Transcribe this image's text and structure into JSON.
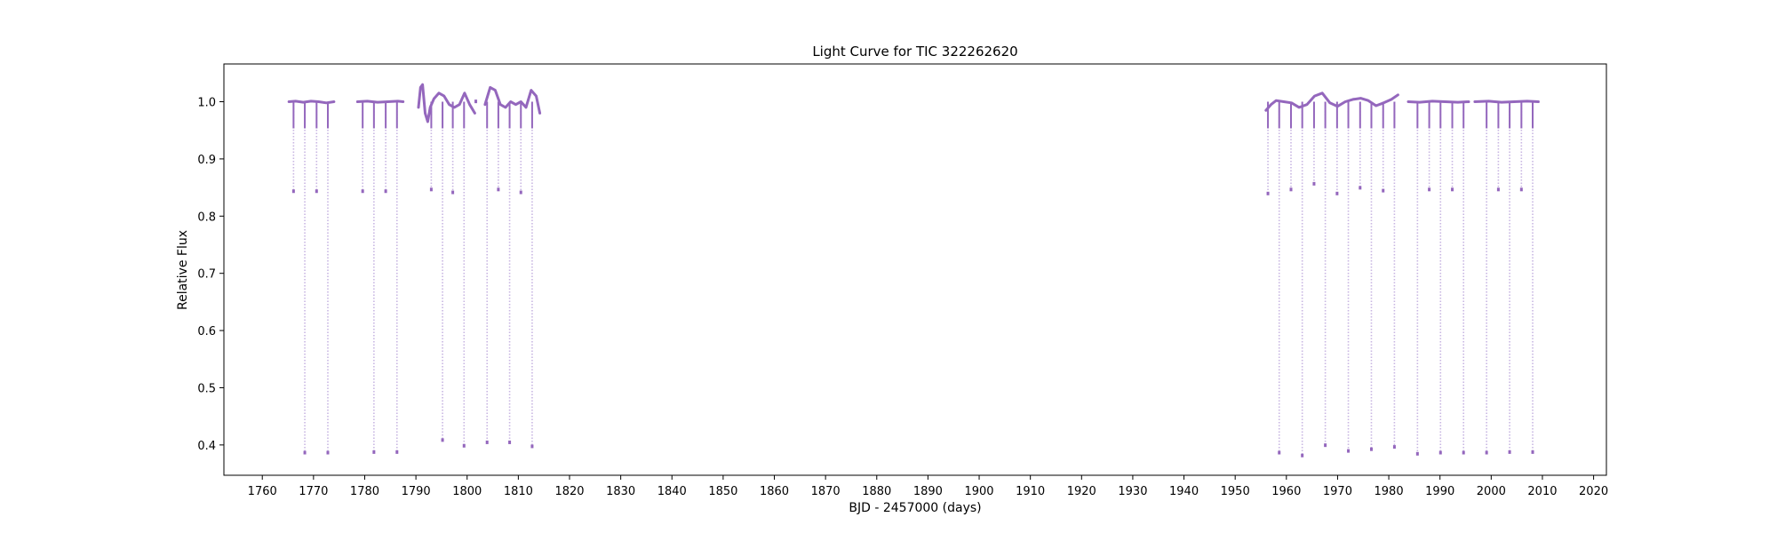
{
  "chart_data": {
    "type": "scatter",
    "title": "Light Curve for TIC 322262620",
    "xlabel": "BJD - 2457000 (days)",
    "ylabel": "Relative Flux",
    "xlim": [
      1752.5,
      2022.5
    ],
    "ylim": [
      0.347,
      1.066
    ],
    "x_ticks": [
      1760,
      1770,
      1780,
      1790,
      1800,
      1810,
      1820,
      1830,
      1840,
      1850,
      1860,
      1870,
      1880,
      1890,
      1900,
      1910,
      1920,
      1930,
      1940,
      1950,
      1960,
      1970,
      1980,
      1990,
      2000,
      2010,
      2020
    ],
    "y_ticks": [
      0.4,
      0.5,
      0.6,
      0.7,
      0.8,
      0.9,
      1.0
    ],
    "y_tick_labels": [
      "0.4",
      "0.5",
      "0.6",
      "0.7",
      "0.8",
      "0.9",
      "1.0"
    ],
    "grid": false,
    "legend": "none",
    "marker_color": "#9467bd",
    "ingress_color": "#c8b6e2",
    "baseline_segments": [
      {
        "x": [
          1765.2,
          1766.5,
          1768.0,
          1769.5,
          1771.0,
          1772.5,
          1774.0
        ],
        "y": [
          1.0,
          1.001,
          0.999,
          1.001,
          1.0,
          0.998,
          1.0
        ]
      },
      {
        "x": [
          1778.6,
          1780.5,
          1782.5,
          1784.5,
          1786.5,
          1787.5
        ],
        "y": [
          1.0,
          1.001,
          0.999,
          1.0,
          1.001,
          1.0
        ]
      },
      {
        "x": [
          1790.5,
          1790.9,
          1791.3,
          1791.8,
          1792.3,
          1792.8,
          1793.5,
          1794.5,
          1795.5,
          1796.5,
          1797.5,
          1798.5,
          1799.5,
          1800.5,
          1801.5
        ],
        "y": [
          0.99,
          1.025,
          1.03,
          0.98,
          0.965,
          0.99,
          1.005,
          1.015,
          1.01,
          0.995,
          0.99,
          0.995,
          1.015,
          0.995,
          0.98
        ]
      },
      {
        "x": [
          1803.5,
          1804.5,
          1805.5,
          1806.5,
          1807.5,
          1808.5,
          1809.5,
          1810.5,
          1811.5,
          1812.5,
          1813.5,
          1814.2
        ],
        "y": [
          0.995,
          1.025,
          1.02,
          0.995,
          0.99,
          1.0,
          0.995,
          1.0,
          0.99,
          1.02,
          1.01,
          0.98
        ]
      },
      {
        "x": [
          1956.0,
          1957.0,
          1958.0,
          1959.5,
          1961.0,
          1962.5,
          1964.0,
          1965.5,
          1967.0,
          1968.5,
          1970.0,
          1971.5,
          1973.0,
          1974.5,
          1976.0,
          1977.5,
          1979.0,
          1980.5,
          1981.8
        ],
        "y": [
          0.985,
          0.995,
          1.002,
          1.0,
          0.998,
          0.99,
          0.995,
          1.01,
          1.015,
          0.998,
          0.992,
          1.0,
          1.004,
          1.006,
          1.002,
          0.993,
          0.998,
          1.004,
          1.012
        ]
      },
      {
        "x": [
          1983.8,
          1986.0,
          1988.5,
          1991.0,
          1993.5,
          1995.6
        ],
        "y": [
          1.0,
          0.999,
          1.001,
          1.0,
          0.999,
          1.0
        ]
      },
      {
        "x": [
          1996.8,
          1999.5,
          2002.0,
          2004.5,
          2007.0,
          2009.2
        ],
        "y": [
          1.0,
          1.001,
          0.999,
          1.0,
          1.001,
          1.0
        ]
      }
    ],
    "primary_eclipses": [
      {
        "x": 1768.3,
        "y": 0.385
      },
      {
        "x": 1772.8,
        "y": 0.385
      },
      {
        "x": 1781.8,
        "y": 0.386
      },
      {
        "x": 1786.3,
        "y": 0.386
      },
      {
        "x": 1795.2,
        "y": 0.407
      },
      {
        "x": 1799.4,
        "y": 0.397
      },
      {
        "x": 1803.9,
        "y": 0.403
      },
      {
        "x": 1808.3,
        "y": 0.403
      },
      {
        "x": 1812.7,
        "y": 0.396
      },
      {
        "x": 1958.6,
        "y": 0.385
      },
      {
        "x": 1963.1,
        "y": 0.38
      },
      {
        "x": 1967.6,
        "y": 0.398
      },
      {
        "x": 1972.1,
        "y": 0.388
      },
      {
        "x": 1976.6,
        "y": 0.391
      },
      {
        "x": 1981.1,
        "y": 0.395
      },
      {
        "x": 1985.6,
        "y": 0.383
      },
      {
        "x": 1990.1,
        "y": 0.385
      },
      {
        "x": 1994.6,
        "y": 0.385
      },
      {
        "x": 1999.1,
        "y": 0.385
      },
      {
        "x": 2003.6,
        "y": 0.386
      },
      {
        "x": 2008.1,
        "y": 0.386
      }
    ],
    "secondary_eclipses": [
      {
        "x": 1766.1,
        "y": 0.842
      },
      {
        "x": 1770.6,
        "y": 0.842
      },
      {
        "x": 1779.6,
        "y": 0.842
      },
      {
        "x": 1784.1,
        "y": 0.842
      },
      {
        "x": 1793.0,
        "y": 0.845
      },
      {
        "x": 1797.2,
        "y": 0.84
      },
      {
        "x": 1801.7,
        "y": 0.999
      },
      {
        "x": 1806.1,
        "y": 0.845
      },
      {
        "x": 1810.5,
        "y": 0.84
      },
      {
        "x": 1956.4,
        "y": 0.838
      },
      {
        "x": 1960.9,
        "y": 0.845
      },
      {
        "x": 1965.4,
        "y": 0.855
      },
      {
        "x": 1969.9,
        "y": 0.838
      },
      {
        "x": 1974.4,
        "y": 0.848
      },
      {
        "x": 1978.9,
        "y": 0.843
      },
      {
        "x": 1987.9,
        "y": 0.845
      },
      {
        "x": 1992.4,
        "y": 0.845
      },
      {
        "x": 2001.4,
        "y": 0.845
      },
      {
        "x": 2005.9,
        "y": 0.845
      }
    ]
  }
}
